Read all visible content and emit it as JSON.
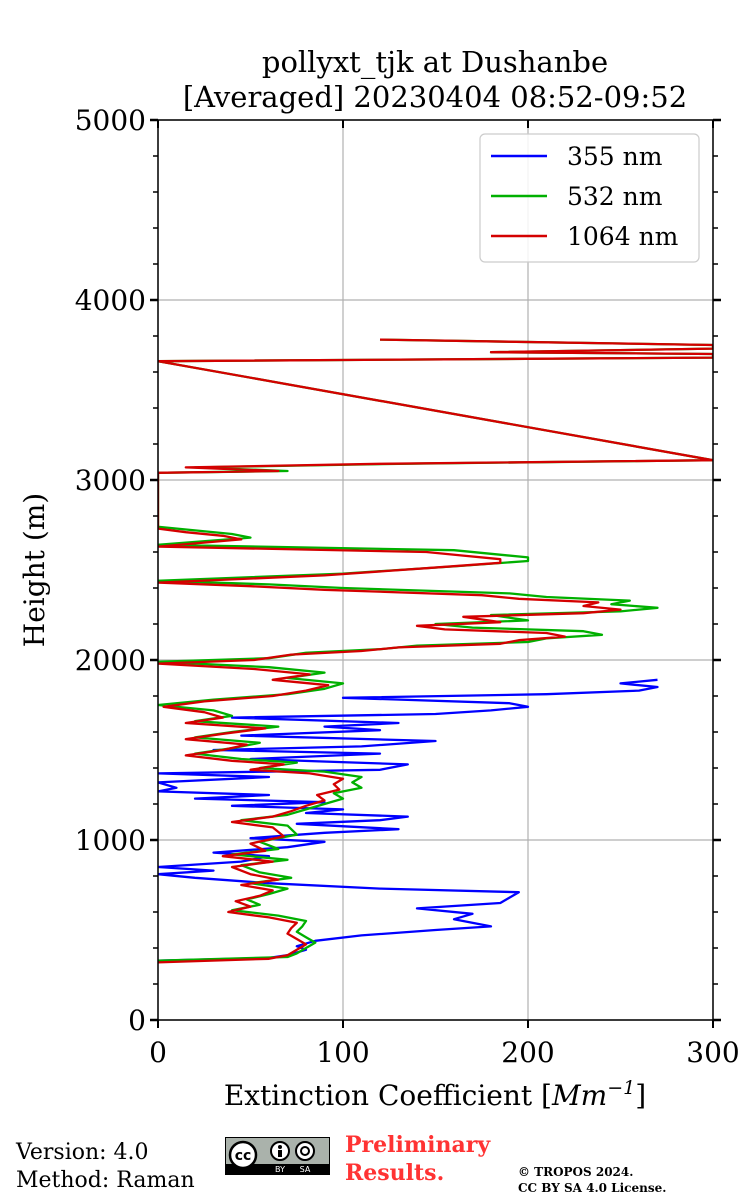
{
  "chart_data": {
    "type": "line",
    "title_line1": "pollyxt_tjk at Dushanbe",
    "title_line2": "[Averaged] 20230404 08:52-09:52",
    "xlabel": "Extinction Coefficient [$Mm^{-1}$]",
    "xlabel_main": "Extinction Coefficient [",
    "xlabel_unit": "Mm",
    "xlabel_exp": "−1",
    "xlabel_close": "]",
    "ylabel": "Height (m)",
    "xlim": [
      0,
      300
    ],
    "ylim": [
      0,
      5000
    ],
    "xticks": [
      "0",
      "100",
      "200",
      "300"
    ],
    "yticks": [
      "0",
      "1000",
      "2000",
      "3000",
      "4000",
      "5000"
    ],
    "grid": true,
    "legend_position": "top-right",
    "series": [
      {
        "name": "355 nm",
        "color": "#0000ff",
        "points": [
          [
            0,
            330
          ],
          [
            60,
            345
          ],
          [
            70,
            360
          ],
          [
            80,
            390
          ],
          [
            75,
            410
          ],
          [
            85,
            440
          ],
          [
            110,
            470
          ],
          [
            150,
            500
          ],
          [
            180,
            520
          ],
          [
            160,
            560
          ],
          [
            170,
            590
          ],
          [
            140,
            620
          ],
          [
            185,
            650
          ],
          [
            190,
            680
          ],
          [
            195,
            710
          ],
          [
            120,
            730
          ],
          [
            60,
            760
          ],
          [
            20,
            790
          ],
          [
            0,
            810
          ],
          [
            30,
            830
          ],
          [
            0,
            850
          ],
          [
            45,
            880
          ],
          [
            60,
            910
          ],
          [
            30,
            930
          ],
          [
            70,
            960
          ],
          [
            90,
            990
          ],
          [
            50,
            1010
          ],
          [
            90,
            1040
          ],
          [
            130,
            1060
          ],
          [
            75,
            1090
          ],
          [
            120,
            1110
          ],
          [
            135,
            1130
          ],
          [
            80,
            1150
          ],
          [
            100,
            1170
          ],
          [
            40,
            1190
          ],
          [
            90,
            1210
          ],
          [
            20,
            1230
          ],
          [
            60,
            1250
          ],
          [
            0,
            1270
          ],
          [
            10,
            1290
          ],
          [
            0,
            1320
          ],
          [
            60,
            1350
          ],
          [
            0,
            1370
          ],
          [
            120,
            1390
          ],
          [
            135,
            1420
          ],
          [
            50,
            1450
          ],
          [
            120,
            1480
          ],
          [
            30,
            1500
          ],
          [
            110,
            1520
          ],
          [
            150,
            1550
          ],
          [
            45,
            1580
          ],
          [
            120,
            1610
          ],
          [
            90,
            1630
          ],
          [
            130,
            1650
          ],
          [
            40,
            1680
          ],
          [
            150,
            1700
          ],
          [
            180,
            1720
          ],
          [
            200,
            1740
          ],
          [
            190,
            1760
          ],
          [
            100,
            1790
          ],
          [
            210,
            1810
          ],
          [
            260,
            1830
          ],
          [
            270,
            1850
          ],
          [
            250,
            1870
          ],
          [
            270,
            1890
          ]
        ]
      },
      {
        "name": "532 nm",
        "color": "#00b000",
        "points": [
          [
            0,
            330
          ],
          [
            70,
            350
          ],
          [
            75,
            370
          ],
          [
            80,
            400
          ],
          [
            85,
            430
          ],
          [
            80,
            460
          ],
          [
            75,
            490
          ],
          [
            78,
            520
          ],
          [
            80,
            550
          ],
          [
            65,
            580
          ],
          [
            40,
            610
          ],
          [
            55,
            640
          ],
          [
            48,
            670
          ],
          [
            60,
            700
          ],
          [
            70,
            730
          ],
          [
            50,
            760
          ],
          [
            72,
            790
          ],
          [
            55,
            820
          ],
          [
            45,
            860
          ],
          [
            70,
            890
          ],
          [
            40,
            920
          ],
          [
            65,
            950
          ],
          [
            55,
            990
          ],
          [
            75,
            1030
          ],
          [
            70,
            1080
          ],
          [
            45,
            1110
          ],
          [
            70,
            1140
          ],
          [
            80,
            1170
          ],
          [
            90,
            1200
          ],
          [
            100,
            1230
          ],
          [
            95,
            1260
          ],
          [
            110,
            1290
          ],
          [
            105,
            1320
          ],
          [
            110,
            1350
          ],
          [
            90,
            1380
          ],
          [
            55,
            1400
          ],
          [
            75,
            1430
          ],
          [
            45,
            1450
          ],
          [
            20,
            1480
          ],
          [
            40,
            1510
          ],
          [
            55,
            1540
          ],
          [
            20,
            1570
          ],
          [
            40,
            1600
          ],
          [
            65,
            1630
          ],
          [
            20,
            1660
          ],
          [
            40,
            1690
          ],
          [
            30,
            1720
          ],
          [
            0,
            1750
          ],
          [
            30,
            1780
          ],
          [
            70,
            1810
          ],
          [
            90,
            1840
          ],
          [
            100,
            1870
          ],
          [
            70,
            1900
          ],
          [
            90,
            1930
          ],
          [
            60,
            1960
          ],
          [
            0,
            1990
          ],
          [
            60,
            2010
          ],
          [
            80,
            2040
          ],
          [
            120,
            2060
          ],
          [
            140,
            2080
          ],
          [
            200,
            2100
          ],
          [
            210,
            2120
          ],
          [
            240,
            2140
          ],
          [
            230,
            2160
          ],
          [
            170,
            2180
          ],
          [
            150,
            2200
          ],
          [
            200,
            2220
          ],
          [
            180,
            2250
          ],
          [
            250,
            2270
          ],
          [
            270,
            2290
          ],
          [
            245,
            2310
          ],
          [
            255,
            2330
          ],
          [
            210,
            2350
          ],
          [
            190,
            2370
          ],
          [
            100,
            2400
          ],
          [
            60,
            2420
          ],
          [
            0,
            2440
          ],
          [
            100,
            2480
          ],
          [
            160,
            2520
          ],
          [
            200,
            2550
          ],
          [
            200,
            2570
          ],
          [
            180,
            2590
          ],
          [
            160,
            2610
          ],
          [
            0,
            2640
          ],
          [
            50,
            2680
          ],
          [
            40,
            2700
          ],
          [
            20,
            2720
          ],
          [
            0,
            2740
          ],
          [
            0,
            3040
          ],
          [
            70,
            3050
          ],
          [
            20,
            3070
          ],
          [
            130,
            3090
          ],
          [
            300,
            3110
          ],
          [
            0,
            3660
          ],
          [
            300,
            3680
          ],
          [
            300,
            3700
          ],
          [
            180,
            3710
          ],
          [
            300,
            3730
          ],
          [
            300,
            3750
          ],
          [
            120,
            3780
          ]
        ]
      },
      {
        "name": "1064 nm",
        "color": "#d40000",
        "points": [
          [
            0,
            320
          ],
          [
            60,
            340
          ],
          [
            70,
            360
          ],
          [
            75,
            390
          ],
          [
            80,
            420
          ],
          [
            75,
            450
          ],
          [
            70,
            480
          ],
          [
            72,
            510
          ],
          [
            75,
            540
          ],
          [
            60,
            570
          ],
          [
            38,
            600
          ],
          [
            50,
            630
          ],
          [
            42,
            660
          ],
          [
            55,
            690
          ],
          [
            62,
            720
          ],
          [
            45,
            750
          ],
          [
            65,
            780
          ],
          [
            50,
            810
          ],
          [
            40,
            850
          ],
          [
            62,
            880
          ],
          [
            35,
            910
          ],
          [
            58,
            940
          ],
          [
            50,
            980
          ],
          [
            68,
            1020
          ],
          [
            62,
            1070
          ],
          [
            40,
            1100
          ],
          [
            62,
            1130
          ],
          [
            72,
            1160
          ],
          [
            80,
            1190
          ],
          [
            90,
            1220
          ],
          [
            86,
            1250
          ],
          [
            98,
            1280
          ],
          [
            95,
            1310
          ],
          [
            100,
            1340
          ],
          [
            82,
            1370
          ],
          [
            50,
            1390
          ],
          [
            68,
            1420
          ],
          [
            40,
            1440
          ],
          [
            15,
            1470
          ],
          [
            35,
            1500
          ],
          [
            48,
            1530
          ],
          [
            15,
            1560
          ],
          [
            35,
            1590
          ],
          [
            58,
            1620
          ],
          [
            15,
            1650
          ],
          [
            35,
            1680
          ],
          [
            25,
            1710
          ],
          [
            3,
            1740
          ],
          [
            25,
            1770
          ],
          [
            62,
            1800
          ],
          [
            80,
            1830
          ],
          [
            92,
            1860
          ],
          [
            62,
            1890
          ],
          [
            82,
            1920
          ],
          [
            52,
            1950
          ],
          [
            0,
            1980
          ],
          [
            52,
            2000
          ],
          [
            72,
            2030
          ],
          [
            110,
            2050
          ],
          [
            130,
            2070
          ],
          [
            185,
            2090
          ],
          [
            195,
            2110
          ],
          [
            220,
            2130
          ],
          [
            210,
            2150
          ],
          [
            155,
            2170
          ],
          [
            140,
            2190
          ],
          [
            185,
            2210
          ],
          [
            165,
            2240
          ],
          [
            230,
            2260
          ],
          [
            250,
            2280
          ],
          [
            230,
            2300
          ],
          [
            238,
            2320
          ],
          [
            195,
            2340
          ],
          [
            175,
            2360
          ],
          [
            90,
            2390
          ],
          [
            50,
            2410
          ],
          [
            0,
            2430
          ],
          [
            90,
            2470
          ],
          [
            145,
            2510
          ],
          [
            185,
            2540
          ],
          [
            185,
            2560
          ],
          [
            165,
            2580
          ],
          [
            145,
            2600
          ],
          [
            0,
            2630
          ],
          [
            45,
            2670
          ],
          [
            35,
            2690
          ],
          [
            15,
            2710
          ],
          [
            0,
            2730
          ],
          [
            0,
            3040
          ],
          [
            65,
            3050
          ],
          [
            15,
            3070
          ],
          [
            120,
            3090
          ],
          [
            300,
            3110
          ],
          [
            0,
            3660
          ],
          [
            300,
            3680
          ],
          [
            300,
            3700
          ],
          [
            180,
            3710
          ],
          [
            300,
            3730
          ],
          [
            300,
            3750
          ],
          [
            120,
            3780
          ]
        ]
      }
    ]
  },
  "footer": {
    "version": "Version: 4.0",
    "method": "Method: Raman",
    "prelim_line1": "Preliminary",
    "prelim_line2": "Results.",
    "copyright_line1": "© TROPOS 2024.",
    "copyright_line2": "CC BY SA 4.0 License.",
    "cc_text_cc": "cc",
    "cc_text_by": "BY",
    "cc_text_sa": "SA"
  }
}
